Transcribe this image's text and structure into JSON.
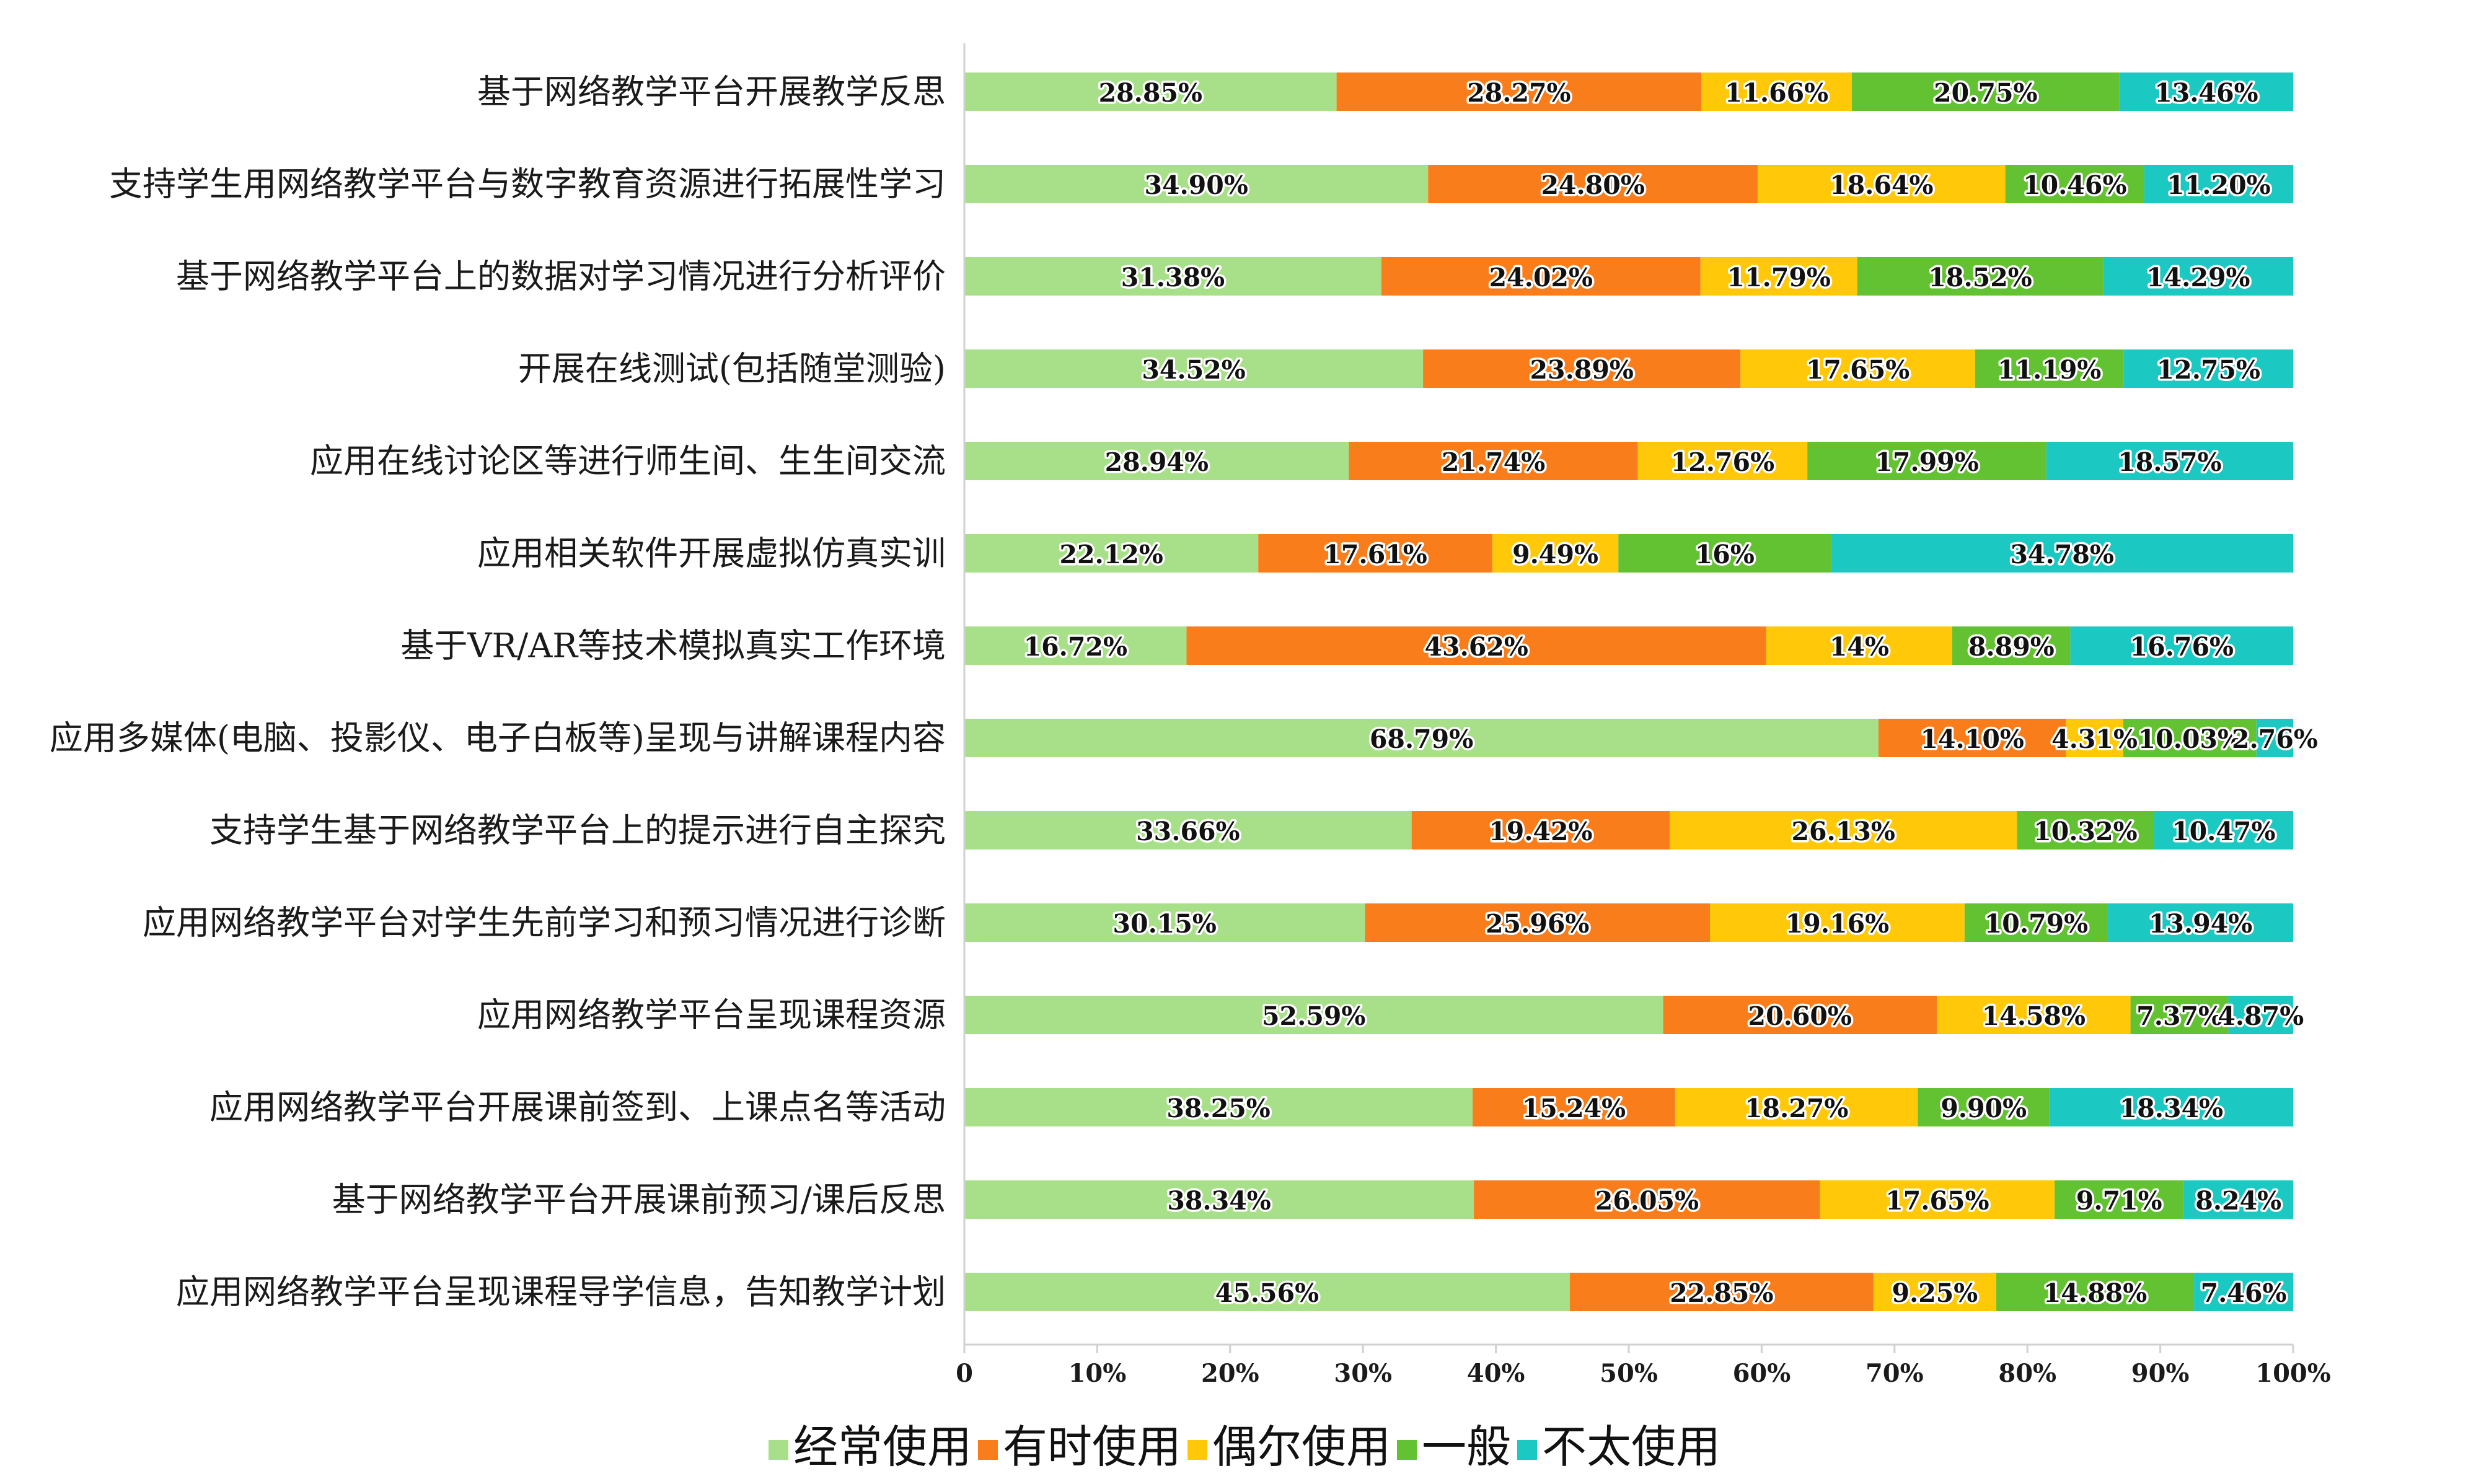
{
  "chart_data": {
    "type": "bar",
    "orientation": "horizontal",
    "stacked": "percent",
    "categories": [
      "基于网络教学平台开展教学反思",
      "支持学生用网络教学平台与数字教育资源进行拓展性学习",
      "基于网络教学平台上的数据对学习情况进行分析评价",
      "开展在线测试(包括随堂测验)",
      "应用在线讨论区等进行师生间、生生间交流",
      "应用相关软件开展虚拟仿真实训",
      "基于VR/AR等技术模拟真实工作环境",
      "应用多媒体(电脑、投影仪、电子白板等)呈现与讲解课程内容",
      "支持学生基于网络教学平台上的提示进行自主探究",
      "应用网络教学平台对学生先前学习和预习情况进行诊断",
      "应用网络教学平台呈现课程资源",
      "应用网络教学平台开展课前签到、上课点名等活动",
      "基于网络教学平台开展课前预习/课后反思",
      "应用网络教学平台呈现课程导学信息，告知教学计划"
    ],
    "series": [
      {
        "name": "经常使用",
        "color": "#a8e08a",
        "values": [
          28.85,
          34.9,
          31.38,
          34.52,
          28.94,
          22.12,
          16.72,
          68.79,
          33.66,
          30.15,
          52.59,
          38.25,
          38.34,
          45.56
        ],
        "labels": [
          "28.85%",
          "34.90%",
          "31.38%",
          "34.52%",
          "28.94%",
          "22.12%",
          "16.72%",
          "68.79%",
          "33.66%",
          "30.15%",
          "52.59%",
          "38.25%",
          "38.34%",
          "45.56%"
        ]
      },
      {
        "name": "有时使用",
        "color": "#fa7d1c",
        "values": [
          28.27,
          24.8,
          24.02,
          23.89,
          21.74,
          17.61,
          43.62,
          14.1,
          19.42,
          25.96,
          20.6,
          15.24,
          26.05,
          22.85
        ],
        "labels": [
          "28.27%",
          "24.80%",
          "24.02%",
          "23.89%",
          "21.74%",
          "17.61%",
          "43.62%",
          "14.10%",
          "19.42%",
          "25.96%",
          "20.60%",
          "15.24%",
          "26.05%",
          "22.85%"
        ]
      },
      {
        "name": "偶尔使用",
        "color": "#ffc90a",
        "values": [
          11.66,
          18.64,
          11.79,
          17.65,
          12.76,
          9.49,
          14,
          4.31,
          26.13,
          19.16,
          14.58,
          18.27,
          17.65,
          9.25
        ],
        "labels": [
          "11.66%",
          "18.64%",
          "11.79%",
          "17.65%",
          "12.76%",
          "9.49%",
          "14%",
          "4.31%",
          "26.13%",
          "19.16%",
          "14.58%",
          "18.27%",
          "17.65%",
          "9.25%"
        ]
      },
      {
        "name": "一般",
        "color": "#63c232",
        "values": [
          20.75,
          10.46,
          18.52,
          11.19,
          17.99,
          16,
          8.89,
          10.03,
          10.32,
          10.79,
          7.37,
          9.9,
          9.71,
          14.88
        ],
        "labels": [
          "20.75%",
          "10.46%",
          "18.52%",
          "11.19%",
          "17.99%",
          "16%",
          "8.89%",
          "10.03%",
          "10.32%",
          "10.79%",
          "7.37%",
          "9.90%",
          "9.71%",
          "14.88%"
        ]
      },
      {
        "name": "不太使用",
        "color": "#1cc9c2",
        "values": [
          13.46,
          11.2,
          14.29,
          12.75,
          18.57,
          34.78,
          16.76,
          2.76,
          10.47,
          13.94,
          4.87,
          18.34,
          8.24,
          7.46
        ],
        "labels": [
          "13.46%",
          "11.20%",
          "14.29%",
          "12.75%",
          "18.57%",
          "34.78%",
          "16.76%",
          "2.76%",
          "10.47%",
          "13.94%",
          "4.87%",
          "18.34%",
          "8.24%",
          "7.46%"
        ]
      }
    ],
    "x_ticks": [
      "0",
      "10%",
      "20%",
      "30%",
      "40%",
      "50%",
      "60%",
      "70%",
      "80%",
      "90%",
      "100%"
    ],
    "xlim": [
      0,
      100
    ],
    "grid": false,
    "legend_position": "bottom",
    "title": "",
    "xlabel": "",
    "ylabel": ""
  }
}
